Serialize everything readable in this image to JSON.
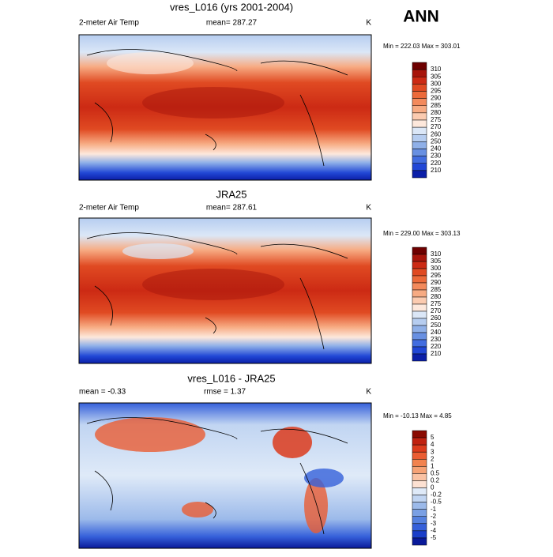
{
  "header": {
    "label": "ANN"
  },
  "panels": [
    {
      "title": "vres_L016 (yrs 2001-2004)",
      "left": "2-meter Air Temp",
      "center": "mean= 287.27",
      "right": "K",
      "minmax": "Min = 222.03 Max = 303.01",
      "levels": [
        310,
        305,
        300,
        295,
        290,
        285,
        280,
        275,
        270,
        260,
        250,
        240,
        230,
        220,
        210
      ],
      "colors": [
        "#6e0000",
        "#a8150b",
        "#cc2a14",
        "#e04a22",
        "#ec6a3a",
        "#f38a5c",
        "#f7ab83",
        "#fbcbb0",
        "#fde8dc",
        "#dbe7f7",
        "#b6cdf0",
        "#8fb0e8",
        "#6890e2",
        "#426de0",
        "#2147d6",
        "#0b1fa8"
      ]
    },
    {
      "title": "JRA25",
      "left": "2-meter Air Temp",
      "center": "mean= 287.61",
      "right": "K",
      "minmax": "Min = 229.00 Max = 303.13",
      "levels": [
        310,
        305,
        300,
        295,
        290,
        285,
        280,
        275,
        270,
        260,
        250,
        240,
        230,
        220,
        210
      ],
      "colors": [
        "#6e0000",
        "#a8150b",
        "#cc2a14",
        "#e04a22",
        "#ec6a3a",
        "#f38a5c",
        "#f7ab83",
        "#fbcbb0",
        "#fde8dc",
        "#dbe7f7",
        "#b6cdf0",
        "#8fb0e8",
        "#6890e2",
        "#426de0",
        "#2147d6",
        "#0b1fa8"
      ]
    },
    {
      "title": "vres_L016 - JRA25",
      "left": "mean =  -0.33",
      "center": "rmse =   1.37",
      "right": "K",
      "minmax": "Min = -10.13 Max =  4.85",
      "levels": [
        5,
        4,
        3,
        2,
        1,
        0.5,
        0.2,
        0,
        -0.2,
        -0.5,
        -1,
        -2,
        -3,
        -4,
        -5
      ],
      "colors": [
        "#8a0a00",
        "#c0210f",
        "#dc3b1c",
        "#ea5d33",
        "#f2834f",
        "#f6a275",
        "#fac2a3",
        "#fde1d2",
        "#dfeaf8",
        "#c1d5f2",
        "#9cbaea",
        "#7aa0e4",
        "#5581df",
        "#3560da",
        "#1a3ec9",
        "#0a1a9a"
      ]
    }
  ]
}
